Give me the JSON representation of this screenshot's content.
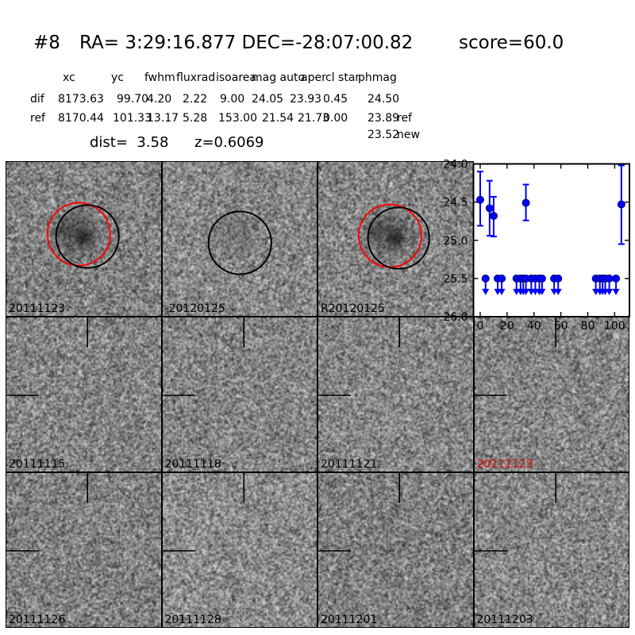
{
  "header": {
    "number": "#8",
    "coords": "RA= 3:29:16.877 DEC=-28:07:00.82",
    "score": "score=60.0"
  },
  "table": {
    "columns": [
      "xc",
      "yc",
      "fwhm",
      "fluxrad",
      "isoarea",
      "mag auto",
      "aper",
      "cl star",
      "phmag"
    ],
    "rows": [
      {
        "label": "dif",
        "values": [
          "8173.63",
          "99.70",
          "4.20",
          "2.22",
          "9.00",
          "24.05",
          "23.93",
          "0.45",
          "24.50"
        ],
        "suffix": ""
      },
      {
        "label": "ref",
        "values": [
          "8170.44",
          "101.33",
          "13.17",
          "5.28",
          "153.00",
          "21.54",
          "21.73",
          "0.00",
          "23.89"
        ],
        "suffix": "ref"
      }
    ],
    "extra": {
      "value": "23.52",
      "suffix": "new"
    },
    "dist": "dist=  3.58",
    "z": "z=0.6069"
  },
  "colors": {
    "marker_blue": "#0000ff",
    "aperture_red": "#ff0000",
    "aperture_black": "#000000",
    "highlight_red": "#e60000"
  },
  "cutouts": {
    "grid": [
      [
        {
          "kind": "image",
          "label": "20111123",
          "label_color": "#000000",
          "overlay": "circles",
          "source": "strong"
        },
        {
          "kind": "image",
          "label": "-20120125",
          "label_color": "#000000",
          "overlay": "circle-black",
          "source": "faint"
        },
        {
          "kind": "image",
          "label": "R20120125",
          "label_color": "#000000",
          "overlay": "circles",
          "source": "strong"
        },
        {
          "kind": "lightcurve"
        }
      ],
      [
        {
          "kind": "image",
          "label": "20111115",
          "label_color": "#000000",
          "overlay": "crosshair"
        },
        {
          "kind": "image",
          "label": "20111118",
          "label_color": "#000000",
          "overlay": "crosshair"
        },
        {
          "kind": "image",
          "label": "20111121",
          "label_color": "#000000",
          "overlay": "crosshair"
        },
        {
          "kind": "image",
          "label": "20111123",
          "label_color": "#e60000",
          "overlay": "crosshair"
        }
      ],
      [
        {
          "kind": "image",
          "label": "20111126",
          "label_color": "#000000",
          "overlay": "crosshair"
        },
        {
          "kind": "image",
          "label": "20111128",
          "label_color": "#000000",
          "overlay": "crosshair"
        },
        {
          "kind": "image",
          "label": "20111201",
          "label_color": "#000000",
          "overlay": "crosshair"
        },
        {
          "kind": "image",
          "label": "20111203",
          "label_color": "#000000",
          "overlay": "crosshair"
        }
      ]
    ]
  },
  "chart_data": {
    "type": "scatter",
    "title": "",
    "xlabel": "",
    "ylabel": "",
    "xlim": [
      -5,
      111
    ],
    "ylim": [
      26.0,
      24.0
    ],
    "y_axis_inverted": true,
    "grid": false,
    "legend": false,
    "xticks": [
      0,
      20,
      40,
      60,
      80,
      100
    ],
    "yticks": [
      24.0,
      24.5,
      25.0,
      25.5,
      26.0
    ],
    "series": [
      {
        "name": "detections",
        "marker": "circle-errorbar",
        "color": "#0000ff",
        "points": [
          {
            "x": 0,
            "y": 24.47,
            "y_err_low": 24.1,
            "y_err_high": 24.81
          },
          {
            "x": 7,
            "y": 24.58,
            "y_err_low": 24.22,
            "y_err_high": 24.94
          },
          {
            "x": 10,
            "y": 24.68,
            "y_err_low": 24.43,
            "y_err_high": 24.95
          },
          {
            "x": 34,
            "y": 24.51,
            "y_err_low": 24.27,
            "y_err_high": 24.74
          },
          {
            "x": 105,
            "y": 24.53,
            "y_err_low": 24.02,
            "y_err_high": 25.05
          }
        ]
      },
      {
        "name": "upper_limits",
        "marker": "circle-down-arrow",
        "color": "#0000ff",
        "y": 25.5,
        "x": [
          4,
          13,
          16,
          27,
          30,
          32,
          34,
          38,
          41,
          44,
          46,
          55,
          58,
          86,
          89,
          91,
          93,
          96,
          101
        ]
      }
    ]
  }
}
